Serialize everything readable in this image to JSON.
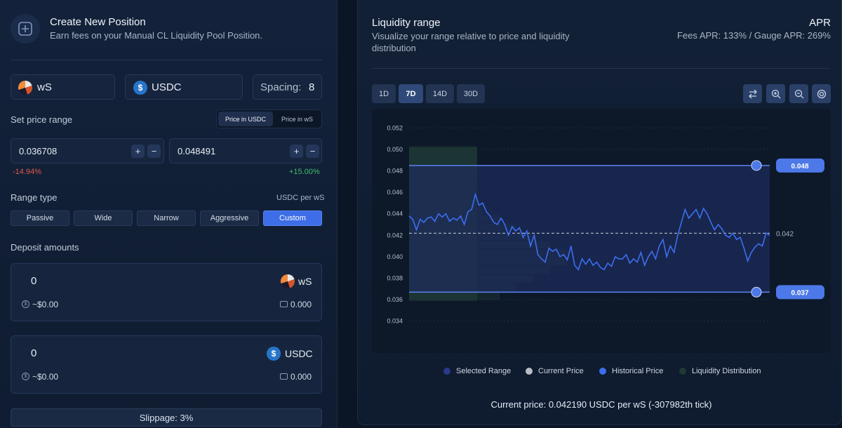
{
  "header": {
    "title": "Create New Position",
    "subtitle": "Earn fees on your Manual CL Liquidity Pool Position."
  },
  "tokens": {
    "token0": "wS",
    "token1": "USDC",
    "spacing_label": "Spacing:",
    "spacing_value": "8"
  },
  "price_range": {
    "label": "Set price range",
    "toggle": [
      "Price in USDC",
      "Price in wS"
    ],
    "min_value": "0.036708",
    "max_value": "0.048491",
    "min_pct": "-14.94%",
    "max_pct": "+15.00%",
    "plus": "+",
    "minus": "−"
  },
  "range_type": {
    "label": "Range type",
    "unit": "USDC per wS",
    "options": [
      "Passive",
      "Wide",
      "Narrow",
      "Aggressive",
      "Custom"
    ]
  },
  "deposit": {
    "label": "Deposit amounts",
    "rows": [
      {
        "amount": "0",
        "token": "wS",
        "usd": "~$0.00",
        "balance": "0.000"
      },
      {
        "amount": "0",
        "token": "USDC",
        "usd": "~$0.00",
        "balance": "0.000"
      }
    ]
  },
  "slippage": "Slippage: 3%",
  "liquidity": {
    "title": "Liquidity range",
    "subtitle": "Visualize your range relative to price and liquidity distribution",
    "apr_label": "APR",
    "apr_detail": "Fees APR: 133% / Gauge APR: 269%",
    "timeframes": [
      "1D",
      "7D",
      "14D",
      "30D"
    ],
    "active_timeframe": "7D",
    "footer": "Current price: 0.042190 USDC per wS (-307982th tick)"
  },
  "legend": [
    "Selected Range",
    "Current Price",
    "Historical Price",
    "Liquidity Distribution"
  ],
  "colors": {
    "accent": "#3d6ee8",
    "range_fill": "#1e2c5e",
    "liquidity": "#1f3a36",
    "price_line": "#3c6ef0",
    "negative": "#e05a4f",
    "positive": "#3fbf6a"
  },
  "chart_data": {
    "type": "line",
    "ylim": [
      0.033,
      0.053
    ],
    "y_ticks": [
      "0.052",
      "0.050",
      "0.048",
      "0.046",
      "0.044",
      "0.042",
      "0.040",
      "0.038",
      "0.036",
      "0.034"
    ],
    "y_tick_values": [
      0.052,
      0.05,
      0.048,
      0.046,
      0.044,
      0.042,
      0.04,
      0.038,
      0.036,
      0.034
    ],
    "range_upper": 0.0485,
    "range_lower": 0.0367,
    "upper_label": "0.048",
    "lower_label": "0.037",
    "current_price": 0.04219,
    "current_label": "0.042",
    "historical_price": [
      0.0438,
      0.0435,
      0.0425,
      0.0435,
      0.0432,
      0.0436,
      0.0437,
      0.0433,
      0.044,
      0.0437,
      0.044,
      0.0433,
      0.0436,
      0.0434,
      0.0438,
      0.043,
      0.0442,
      0.0444,
      0.0458,
      0.0448,
      0.045,
      0.0442,
      0.0438,
      0.0432,
      0.043,
      0.0436,
      0.043,
      0.042,
      0.0428,
      0.0424,
      0.0427,
      0.0418,
      0.0424,
      0.041,
      0.042,
      0.0402,
      0.0398,
      0.0395,
      0.0408,
      0.0405,
      0.0407,
      0.04,
      0.0402,
      0.0397,
      0.041,
      0.0392,
      0.0388,
      0.0398,
      0.0393,
      0.0398,
      0.0392,
      0.0395,
      0.039,
      0.0388,
      0.0394,
      0.0391,
      0.04,
      0.0398,
      0.0398,
      0.0402,
      0.0394,
      0.0398,
      0.0395,
      0.0404,
      0.0392,
      0.04,
      0.0405,
      0.0398,
      0.041,
      0.0416,
      0.04,
      0.041,
      0.0404,
      0.042,
      0.0432,
      0.0444,
      0.0436,
      0.044,
      0.0444,
      0.0436,
      0.0445,
      0.044,
      0.0432,
      0.0425,
      0.043,
      0.0426,
      0.042,
      0.0418,
      0.0422,
      0.0416,
      0.0418,
      0.0408,
      0.0396,
      0.0404,
      0.0409,
      0.0412,
      0.041,
      0.0422,
      0.042
    ]
  }
}
